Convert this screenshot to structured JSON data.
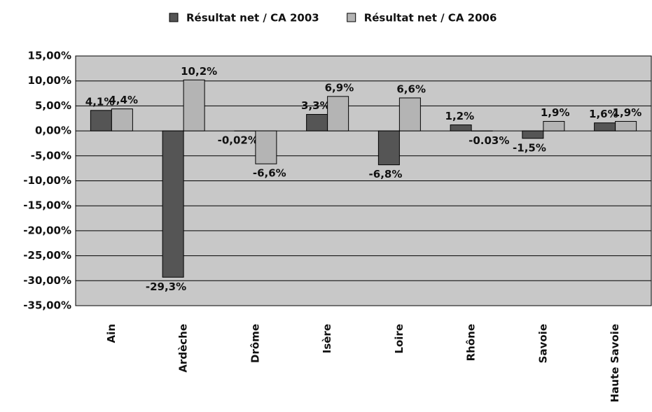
{
  "chart_data": {
    "type": "bar",
    "categories": [
      "Ain",
      "Ardèche",
      "Drôme",
      "Isère",
      "Loire",
      "Rhône",
      "Savoie",
      "Haute Savoie"
    ],
    "series": [
      {
        "name": "Résultat net / CA 2003",
        "color": "#555555",
        "values": [
          4.1,
          -29.3,
          -0.02,
          3.3,
          -6.8,
          1.2,
          -1.5,
          1.6
        ],
        "value_labels": [
          "4,1%",
          "-29,3%",
          "-0,02%",
          "3,3%",
          "-6,8%",
          "1,2%",
          "-1,5%",
          "1,6%"
        ]
      },
      {
        "name": "Résultat net / CA 2006",
        "color": "#b4b4b4",
        "values": [
          4.4,
          10.2,
          -6.6,
          6.9,
          6.6,
          -0.03,
          1.9,
          1.9
        ],
        "value_labels": [
          "4,4%",
          "10,2%",
          "-6,6%",
          "6,9%",
          "6,6%",
          "-0.03%",
          "1,9%",
          "1,9%"
        ]
      }
    ],
    "ylim": [
      -35,
      15
    ],
    "yticks": [
      {
        "value": -35,
        "label": "-35,00%"
      },
      {
        "value": -30,
        "label": "-30,00%"
      },
      {
        "value": -25,
        "label": "-25,00%"
      },
      {
        "value": -20,
        "label": "-20,00%"
      },
      {
        "value": -15,
        "label": "-15,00%"
      },
      {
        "value": -10,
        "label": "-10,00%"
      },
      {
        "value": -5,
        "label": "-5,00%"
      },
      {
        "value": 0,
        "label": "0,00%"
      },
      {
        "value": 5,
        "label": "5,00%"
      },
      {
        "value": 10,
        "label": "10,00%"
      },
      {
        "value": 15,
        "label": "15,00%"
      }
    ],
    "grid": true,
    "legend": "top"
  }
}
